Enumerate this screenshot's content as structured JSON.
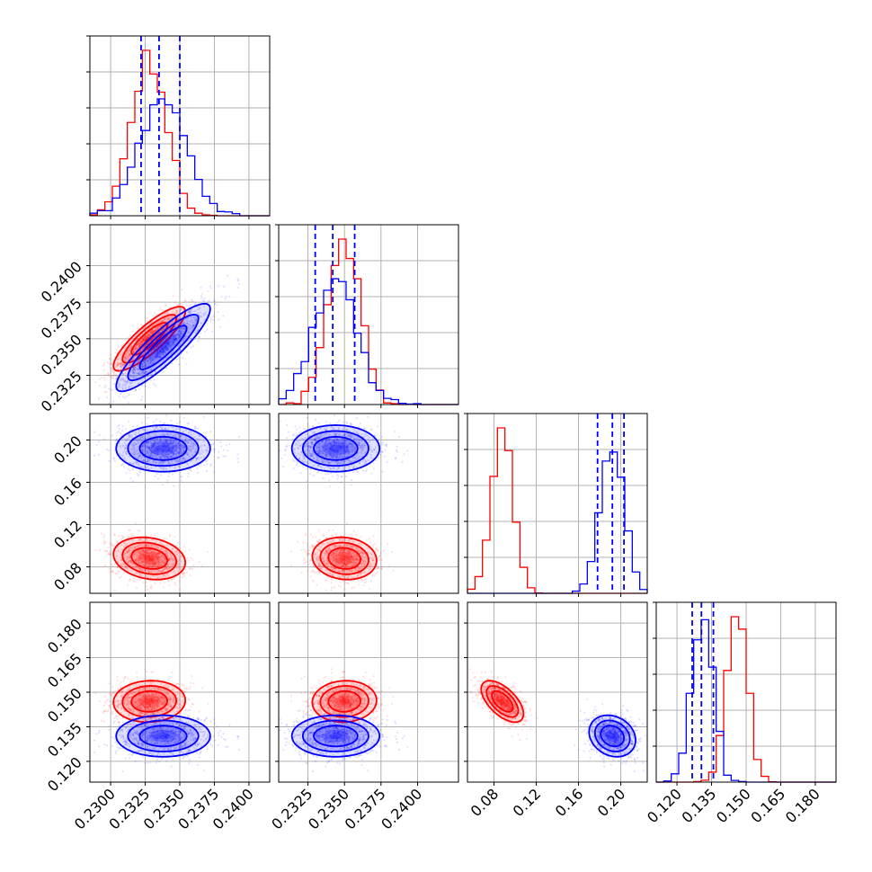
{
  "chart_data": {
    "type": "corner",
    "params": [
      {
        "range": [
          0.2285,
          0.2415
        ],
        "ticks": [
          0.23,
          0.2325,
          0.235,
          0.2375,
          0.24
        ],
        "tick_labels": [
          "0.2300",
          "0.2325",
          "0.2350",
          "0.2375",
          "0.2400"
        ]
      },
      {
        "range": [
          0.2305,
          0.2428
        ],
        "ticks": [
          0.2325,
          0.235,
          0.2375,
          0.24
        ],
        "tick_labels": [
          "0.2325",
          "0.2350",
          "0.2375",
          "0.2400"
        ]
      },
      {
        "range": [
          0.055,
          0.225
        ],
        "ticks": [
          0.08,
          0.12,
          0.16,
          0.2
        ],
        "tick_labels": [
          "0.08",
          "0.12",
          "0.16",
          "0.20"
        ]
      },
      {
        "range": [
          0.111,
          0.189
        ],
        "ticks": [
          0.12,
          0.135,
          0.15,
          0.165,
          0.18
        ],
        "tick_labels": [
          "0.120",
          "0.135",
          "0.150",
          "0.165",
          "0.180"
        ]
      }
    ],
    "series": [
      {
        "color": "#ff0000",
        "mean": [
          0.2328,
          0.235,
          0.088,
          0.146
        ],
        "std": [
          0.0013,
          0.0011,
          0.01,
          0.0045
        ],
        "corr": [
          [
            1.0,
            0.85,
            -0.2,
            0.05
          ],
          [
            0.85,
            1.0,
            -0.1,
            0.05
          ],
          [
            -0.2,
            -0.1,
            1.0,
            -0.6
          ],
          [
            0.05,
            0.05,
            -0.6,
            1.0
          ]
        ]
      },
      {
        "color": "#0000ff",
        "mean": [
          0.2338,
          0.2344,
          0.192,
          0.131
        ],
        "std": [
          0.0017,
          0.0015,
          0.011,
          0.0045
        ],
        "corr": [
          [
            1.0,
            0.88,
            0.0,
            0.0
          ],
          [
            0.88,
            1.0,
            0.0,
            0.0
          ],
          [
            0.0,
            0.0,
            1.0,
            -0.2
          ],
          [
            0.0,
            0.0,
            -0.2,
            1.0
          ]
        ]
      }
    ],
    "quantile_lines": {
      "color": "#0000ff",
      "values": [
        [
          0.2322,
          0.2335,
          0.235
        ],
        [
          0.233,
          0.2342,
          0.2357
        ],
        [
          0.178,
          0.192,
          0.203
        ],
        [
          0.1266,
          0.1306,
          0.1358
        ]
      ]
    },
    "contour_levels": [
      1,
      1.5,
      2
    ],
    "grid": true,
    "legend": "none"
  }
}
